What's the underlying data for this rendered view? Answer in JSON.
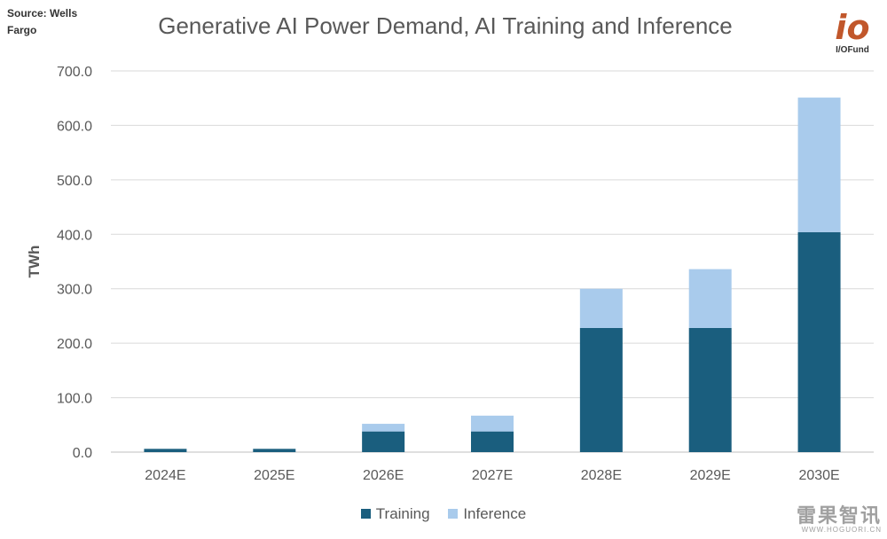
{
  "source_label": "Source: Wells Fargo",
  "brand": {
    "name": "I/OFund",
    "mark": "io",
    "color": "#c1572b"
  },
  "watermark": {
    "main": "雷果智讯",
    "sub": "WWW.HOGUORI.CN"
  },
  "chart_data": {
    "type": "bar",
    "stacked": true,
    "title": "Generative AI Power Demand, AI Training and Inference",
    "xlabel": "",
    "ylabel": "TWh",
    "ylim": [
      0,
      700
    ],
    "ytick_step": 100,
    "ytick_labels": [
      "0.0",
      "100.0",
      "200.0",
      "300.0",
      "400.0",
      "500.0",
      "600.0",
      "700.0"
    ],
    "grid": true,
    "legend_position": "bottom",
    "categories": [
      "2024E",
      "2025E",
      "2026E",
      "2027E",
      "2028E",
      "2029E",
      "2030E"
    ],
    "series": [
      {
        "name": "Training",
        "color": "#1a5e7e",
        "values": [
          6,
          6,
          38,
          38,
          228,
          228,
          404
        ]
      },
      {
        "name": "Inference",
        "color": "#a9cbec",
        "values": [
          0,
          0,
          14,
          29,
          72,
          108,
          247
        ]
      }
    ]
  }
}
